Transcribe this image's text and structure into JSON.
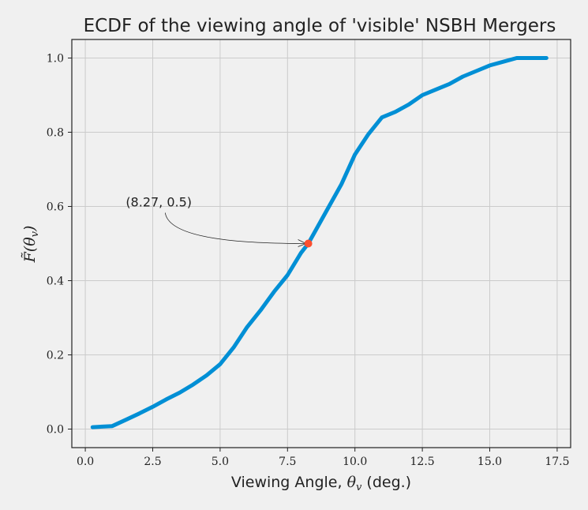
{
  "chart_data": {
    "type": "line",
    "title": "ECDF of the viewing angle of 'visible' NSBH Mergers",
    "xlabel_text": "Viewing Angle,",
    "xlabel_math": "θ",
    "xlabel_sub": "v",
    "xlabel_unit": "(deg.)",
    "ylabel_math": "F̃(θ",
    "ylabel_sub": "v",
    "ylabel_close": ")",
    "xlim": [
      -0.5,
      18.0
    ],
    "ylim": [
      -0.05,
      1.05
    ],
    "xticks": [
      0.0,
      2.5,
      5.0,
      7.5,
      10.0,
      12.5,
      15.0,
      17.5
    ],
    "xtick_labels": [
      "0.0",
      "2.5",
      "5.0",
      "7.5",
      "10.0",
      "12.5",
      "15.0",
      "17.5"
    ],
    "yticks": [
      0.0,
      0.2,
      0.4,
      0.6,
      0.8,
      1.0
    ],
    "ytick_labels": [
      "0.0",
      "0.2",
      "0.4",
      "0.6",
      "0.8",
      "1.0"
    ],
    "grid": true,
    "series": [
      {
        "color": "#008fd5",
        "x": [
          0.27,
          1.0,
          1.5,
          2.0,
          2.5,
          3.0,
          3.5,
          4.0,
          4.5,
          5.0,
          5.5,
          6.0,
          6.5,
          7.0,
          7.5,
          8.0,
          8.27,
          8.5,
          9.0,
          9.5,
          10.0,
          10.5,
          11.0,
          11.5,
          12.0,
          12.5,
          13.0,
          13.5,
          14.0,
          14.5,
          15.0,
          15.5,
          16.0,
          16.5,
          17.0,
          17.1
        ],
        "y": [
          0.005,
          0.008,
          0.025,
          0.042,
          0.06,
          0.08,
          0.098,
          0.12,
          0.145,
          0.175,
          0.22,
          0.275,
          0.32,
          0.37,
          0.415,
          0.475,
          0.5,
          0.53,
          0.595,
          0.66,
          0.74,
          0.795,
          0.84,
          0.855,
          0.875,
          0.9,
          0.915,
          0.93,
          0.95,
          0.965,
          0.98,
          0.99,
          1.0,
          1.0,
          1.0,
          1.0
        ]
      }
    ],
    "annotation": {
      "label": "(8.27, 0.5)",
      "point": [
        8.27,
        0.5
      ],
      "text_pos": [
        1.5,
        0.6
      ],
      "point_color": "#fc4f30"
    }
  }
}
